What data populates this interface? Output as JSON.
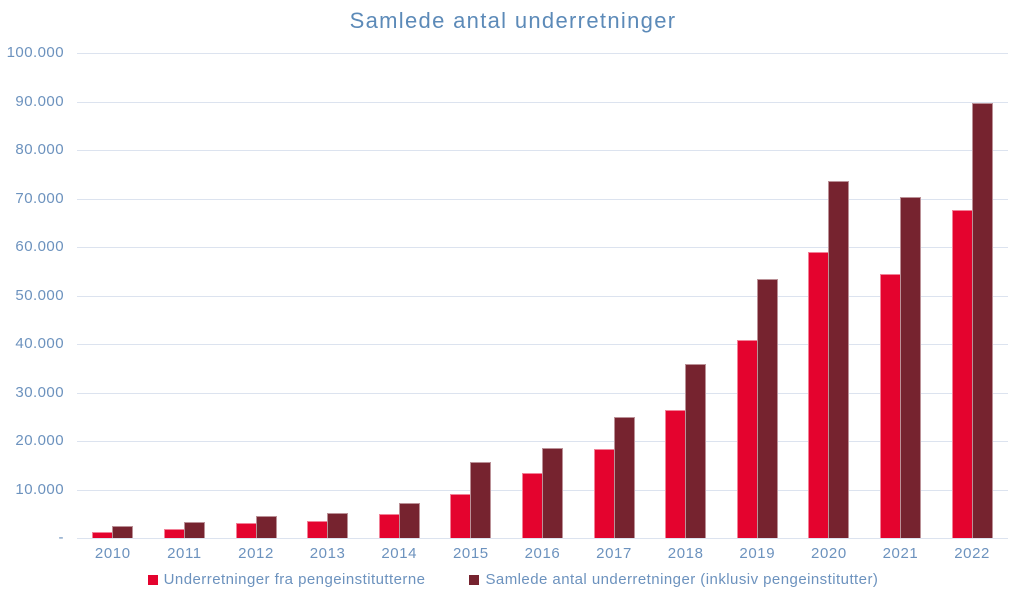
{
  "chart_data": {
    "type": "bar",
    "title": "Samlede antal underretninger",
    "categories": [
      "2010",
      "2011",
      "2012",
      "2013",
      "2014",
      "2015",
      "2016",
      "2017",
      "2018",
      "2019",
      "2020",
      "2021",
      "2022"
    ],
    "series": [
      {
        "name": "Underretninger fra pengeinstitutterne",
        "color": "#E4032E",
        "values": [
          1200,
          1800,
          3000,
          3500,
          5000,
          9100,
          13500,
          18400,
          26400,
          40800,
          59000,
          54400,
          67600
        ]
      },
      {
        "name": "Samlede antal underretninger (inklusiv pengeinstitutter)",
        "color": "#76232F",
        "values": [
          2400,
          3200,
          4500,
          5200,
          7200,
          15700,
          18600,
          25000,
          35800,
          53500,
          73600,
          70400,
          89700
        ]
      }
    ],
    "ylim": [
      0,
      100000
    ],
    "y_ticks": [
      {
        "value": 100000,
        "label": "100.000"
      },
      {
        "value": 90000,
        "label": "90.000"
      },
      {
        "value": 80000,
        "label": "80.000"
      },
      {
        "value": 70000,
        "label": "70.000"
      },
      {
        "value": 60000,
        "label": "60.000"
      },
      {
        "value": 50000,
        "label": "50.000"
      },
      {
        "value": 40000,
        "label": "40.000"
      },
      {
        "value": 30000,
        "label": "30.000"
      },
      {
        "value": 20000,
        "label": "20.000"
      },
      {
        "value": 10000,
        "label": "10.000"
      },
      {
        "value": 0,
        "label": "-"
      }
    ],
    "grid": true,
    "legend_position": "bottom"
  },
  "colors": {
    "title_text": "#5C8AB8",
    "axis_text": "#6C92BE",
    "gridline": "#DCE3EF",
    "background": "#FFFFFF"
  }
}
